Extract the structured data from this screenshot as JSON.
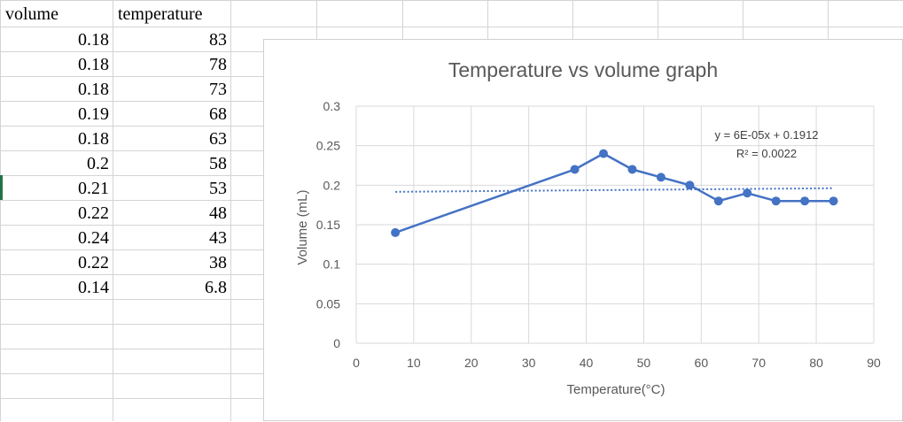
{
  "sheet": {
    "headers": [
      "volume",
      "temperature"
    ],
    "rows": [
      [
        "0.18",
        "83"
      ],
      [
        "0.18",
        "78"
      ],
      [
        "0.18",
        "73"
      ],
      [
        "0.19",
        "68"
      ],
      [
        "0.18",
        "63"
      ],
      [
        "0.2",
        "58"
      ],
      [
        "0.21",
        "53"
      ],
      [
        "0.22",
        "48"
      ],
      [
        "0.24",
        "43"
      ],
      [
        "0.22",
        "38"
      ],
      [
        "0.14",
        "6.8"
      ]
    ]
  },
  "colors": {
    "series": "#4472C4",
    "grid": "#d9d9d9",
    "cell_border": "#d4d4d4",
    "axis_text": "#595959"
  },
  "chart_data": {
    "type": "scatter",
    "title": "Temperature vs volume graph",
    "xlabel": "Temperature(°C)",
    "ylabel": "Volume (mL)",
    "xlim": [
      0,
      90
    ],
    "ylim": [
      0,
      0.3
    ],
    "xticks": [
      "0",
      "10",
      "20",
      "30",
      "40",
      "50",
      "60",
      "70",
      "80",
      "90"
    ],
    "yticks": [
      "0",
      "0.05",
      "0.1",
      "0.15",
      "0.2",
      "0.25",
      "0.3"
    ],
    "grid": true,
    "legend": "none",
    "series": [
      {
        "x": [
          6.8,
          38,
          43,
          48,
          53,
          58,
          63,
          68,
          73,
          78,
          83
        ],
        "y": [
          0.14,
          0.22,
          0.24,
          0.22,
          0.21,
          0.2,
          0.18,
          0.19,
          0.18,
          0.18,
          0.18
        ],
        "style": "smooth-line-with-markers"
      }
    ],
    "trendline": {
      "type": "linear",
      "slope": 6e-05,
      "intercept": 0.1912,
      "x_range": [
        6.8,
        83
      ],
      "equation_label": "y = 6E-05x + 0.1912",
      "r2_label": "R² = 0.0022"
    }
  }
}
